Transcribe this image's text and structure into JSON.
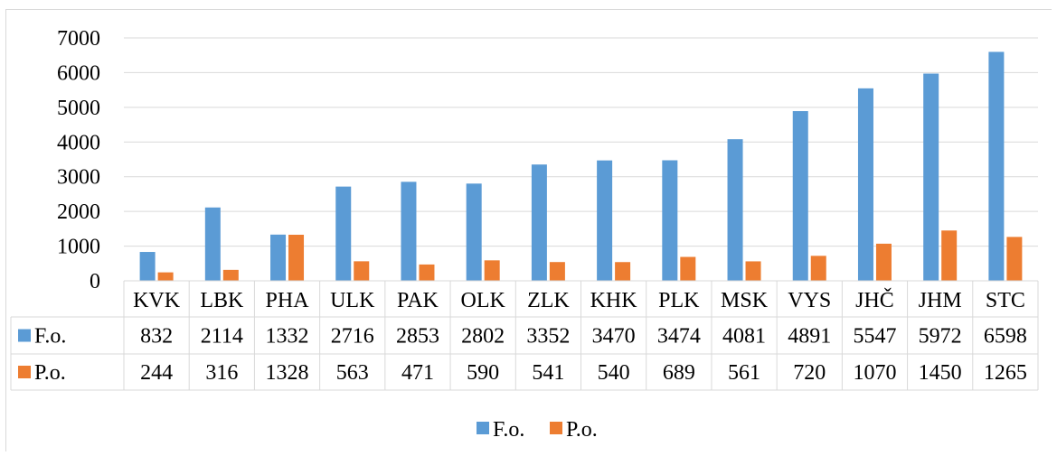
{
  "chart_data": {
    "type": "bar",
    "categories": [
      "KVK",
      "LBK",
      "PHA",
      "ULK",
      "PAK",
      "OLK",
      "ZLK",
      "KHK",
      "PLK",
      "MSK",
      "VYS",
      "JHČ",
      "JHM",
      "STC"
    ],
    "series": [
      {
        "name": "F.o.",
        "color": "#5b9bd5",
        "values": [
          832,
          2114,
          1332,
          2716,
          2853,
          2802,
          3352,
          3470,
          3474,
          4081,
          4891,
          5547,
          5972,
          6598
        ]
      },
      {
        "name": "P.o.",
        "color": "#ed7d31",
        "values": [
          244,
          316,
          1328,
          563,
          471,
          590,
          541,
          540,
          689,
          561,
          720,
          1070,
          1450,
          1265
        ]
      }
    ],
    "ylim": [
      0,
      7000
    ],
    "yticks": [
      0,
      1000,
      2000,
      3000,
      4000,
      5000,
      6000,
      7000
    ],
    "grid": true,
    "data_table": true,
    "legend_position": "bottom"
  }
}
